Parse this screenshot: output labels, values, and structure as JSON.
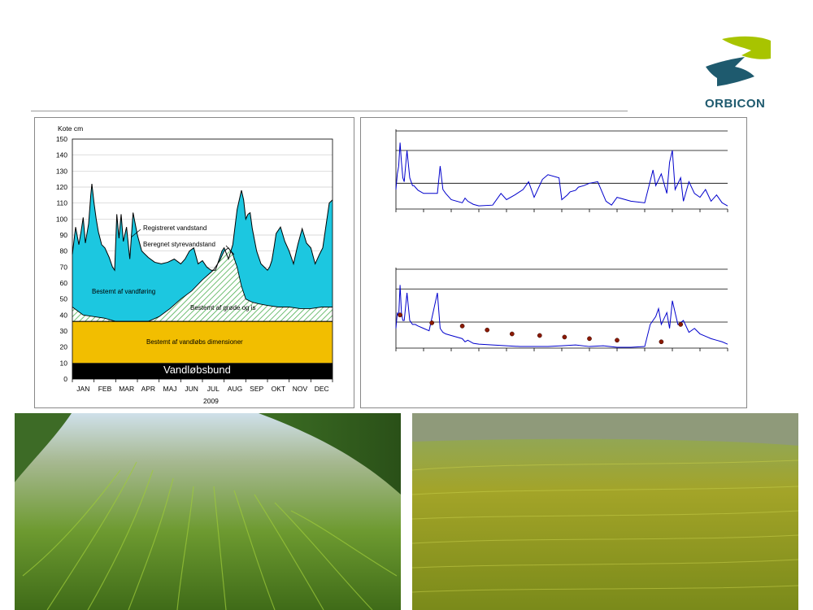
{
  "header": {
    "brand": "ORBICON",
    "brand_colors": {
      "teal": "#1e5a6e",
      "lime": "#a8c400"
    }
  },
  "chart_data": [
    {
      "type": "area",
      "ylabel": "Kote cm",
      "xlabel": "2009",
      "ylim": [
        0,
        150
      ],
      "yticks": [
        0,
        10,
        20,
        30,
        40,
        50,
        60,
        70,
        80,
        90,
        100,
        110,
        120,
        130,
        140,
        150
      ],
      "months": [
        "JAN",
        "FEB",
        "MAR",
        "APR",
        "MAJ",
        "JUN",
        "JUL",
        "AUG",
        "SEP",
        "OKT",
        "NOV",
        "DEC"
      ],
      "grid": true,
      "series": [
        {
          "name": "Registreret vandstand",
          "x": [
            0,
            0.15,
            0.3,
            0.4,
            0.5,
            0.6,
            0.75,
            0.85,
            0.9,
            1.0,
            1.1,
            1.2,
            1.35,
            1.5,
            1.7,
            1.85,
            1.95,
            2.05,
            2.15,
            2.25,
            2.35,
            2.5,
            2.65,
            2.8,
            3.0,
            3.2,
            3.5,
            3.8,
            4.1,
            4.4,
            4.7,
            5.0,
            5.2,
            5.4,
            5.6,
            5.8,
            6.0,
            6.2,
            6.4,
            6.6,
            6.8,
            6.9,
            7.0,
            7.2,
            7.4,
            7.6,
            7.8,
            7.9,
            8.0,
            8.1,
            8.2,
            8.3,
            8.5,
            8.7,
            9.0,
            9.1,
            9.2,
            9.3,
            9.4,
            9.6,
            9.8,
            10.0,
            10.2,
            10.4,
            10.6,
            10.8,
            11.0,
            11.2,
            11.4,
            11.55,
            11.7,
            11.85,
            12.0
          ],
          "y": [
            78,
            95,
            84,
            92,
            101,
            85,
            97,
            115,
            122,
            110,
            100,
            92,
            84,
            82,
            76,
            70,
            68,
            103,
            88,
            103,
            86,
            95,
            75,
            104,
            90,
            80,
            76,
            73,
            72,
            73,
            75,
            72,
            75,
            80,
            82,
            72,
            74,
            70,
            68,
            68,
            76,
            80,
            82,
            75,
            84,
            106,
            118,
            112,
            100,
            103,
            104,
            94,
            80,
            72,
            68,
            70,
            74,
            82,
            91,
            95,
            86,
            80,
            72,
            84,
            94,
            85,
            82,
            72,
            78,
            82,
            96,
            110,
            112
          ]
        },
        {
          "name": "Beregnet styrevandstand",
          "x": [
            0,
            0.5,
            1.0,
            1.5,
            2.0,
            2.5,
            3.0,
            3.5,
            4.0,
            4.5,
            5.0,
            5.5,
            6.0,
            6.5,
            6.8,
            7.0,
            7.2,
            7.4,
            7.6,
            7.8,
            8.0,
            8.3,
            8.6,
            9.0,
            9.5,
            10.0,
            10.5,
            11.0,
            11.5,
            12.0
          ],
          "y": [
            45,
            40,
            39,
            38,
            36,
            36,
            36,
            36,
            39,
            44,
            50,
            55,
            62,
            68,
            74,
            80,
            82,
            78,
            70,
            58,
            50,
            48,
            47,
            46,
            45,
            45,
            44,
            44,
            45,
            45
          ]
        }
      ],
      "bands": [
        {
          "name": "Vandløbsbund",
          "from": 0,
          "to": 10,
          "color": "#000000"
        },
        {
          "name": "Bestemt af vandløbs dimensioner",
          "from": 10,
          "to": 36,
          "color": "#f2be00"
        }
      ],
      "annotations": [
        "Registreret vandstand",
        "Beregnet styrevandstand",
        "Bestemt af vandføring",
        "Bestemt af grøde og is"
      ],
      "colors": {
        "water": "#1cc7e0",
        "weed_hatch": "#4caf50"
      }
    },
    {
      "type": "line",
      "title": "",
      "color": "#0000cc",
      "x": [
        0,
        0.05,
        0.1,
        0.15,
        0.2,
        0.25,
        0.3,
        0.4,
        0.5,
        0.6,
        0.65,
        0.7,
        0.8,
        1.0,
        1.2,
        1.5,
        1.6,
        1.7,
        1.8,
        2.0,
        2.4,
        2.5,
        2.6,
        2.8,
        3.0,
        3.5,
        3.8,
        4.0,
        4.3,
        4.6,
        4.8,
        5.0,
        5.3,
        5.5,
        5.9,
        6.0,
        6.2,
        6.3,
        6.5,
        6.6,
        6.8,
        7.0,
        7.3,
        7.6,
        7.8,
        8.0,
        8.5,
        9.0,
        9.3,
        9.4,
        9.6,
        9.8,
        9.9,
        10.0,
        10.1,
        10.3,
        10.4,
        10.6,
        10.8,
        11.0,
        11.2,
        11.4,
        11.6,
        11.8,
        12.0
      ],
      "y": [
        25,
        45,
        55,
        85,
        60,
        40,
        35,
        75,
        40,
        30,
        30,
        28,
        24,
        20,
        20,
        20,
        55,
        25,
        20,
        12,
        8,
        14,
        10,
        6,
        4,
        5,
        20,
        12,
        18,
        25,
        35,
        15,
        38,
        44,
        40,
        12,
        18,
        22,
        24,
        28,
        30,
        33,
        35,
        10,
        5,
        15,
        10,
        8,
        50,
        30,
        45,
        20,
        60,
        75,
        25,
        40,
        10,
        35,
        20,
        15,
        25,
        10,
        18,
        8,
        4
      ]
    },
    {
      "type": "line",
      "color": "#0000cc",
      "x": [
        0,
        0.05,
        0.1,
        0.15,
        0.2,
        0.25,
        0.3,
        0.4,
        0.5,
        0.6,
        0.7,
        0.8,
        1.0,
        1.2,
        1.5,
        1.6,
        1.7,
        1.8,
        2.0,
        2.4,
        2.5,
        2.6,
        2.8,
        3.0,
        3.5,
        4.0,
        4.5,
        5.0,
        5.5,
        6.0,
        6.5,
        7.0,
        7.5,
        8.0,
        8.5,
        9.0,
        9.2,
        9.4,
        9.5,
        9.6,
        9.8,
        9.9,
        10.0,
        10.2,
        10.4,
        10.6,
        10.8,
        11.0,
        11.2,
        11.4,
        11.6,
        11.8,
        12.0
      ],
      "y": [
        25,
        45,
        40,
        80,
        45,
        35,
        35,
        70,
        35,
        30,
        30,
        28,
        25,
        22,
        70,
        25,
        20,
        18,
        16,
        12,
        8,
        10,
        6,
        5,
        4,
        3,
        2,
        2,
        2,
        3,
        4,
        2,
        3,
        1,
        1,
        2,
        30,
        40,
        50,
        30,
        45,
        25,
        60,
        30,
        35,
        20,
        25,
        18,
        15,
        12,
        10,
        8,
        5
      ],
      "markers": {
        "color": "#8b1a00",
        "x": [
          0.15,
          1.3,
          2.4,
          3.3,
          4.2,
          5.2,
          6.1,
          7.0,
          8.0,
          9.6,
          10.3
        ],
        "y": [
          42,
          32,
          28,
          23,
          18,
          16,
          14,
          12,
          10,
          8,
          30
        ]
      }
    }
  ]
}
